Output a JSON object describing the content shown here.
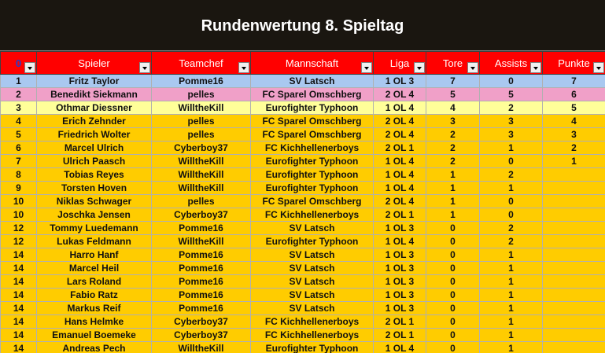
{
  "title": "Rundenwertung 8. Spieltag",
  "columns": [
    {
      "label": "0",
      "key": "rank"
    },
    {
      "label": "Spieler",
      "key": "spieler"
    },
    {
      "label": "Teamchef",
      "key": "teamchef"
    },
    {
      "label": "Mannschaft",
      "key": "mannschaft"
    },
    {
      "label": "Liga",
      "key": "liga"
    },
    {
      "label": "Tore",
      "key": "tore"
    },
    {
      "label": "Assists",
      "key": "assists"
    },
    {
      "label": "Punkte",
      "key": "punkte"
    }
  ],
  "colors": {
    "header_bg": "#ff0000",
    "title_bg": "#1a1610",
    "row_first": "#a9c8f0",
    "row_second": "#f0a0c8",
    "row_third": "#ffff99",
    "row_default": "#ffcc00"
  },
  "rows": [
    {
      "rank": "1",
      "spieler": "Fritz Taylor",
      "teamchef": "Pomme16",
      "mannschaft": "SV Latsch",
      "liga": "1 OL 3",
      "tore": "7",
      "assists": "0",
      "punkte": "7",
      "style": "blue"
    },
    {
      "rank": "2",
      "spieler": "Benedikt Siekmann",
      "teamchef": "pelles",
      "mannschaft": "FC Sparel Omschberg",
      "liga": "2 OL 4",
      "tore": "5",
      "assists": "5",
      "punkte": "6",
      "style": "pink"
    },
    {
      "rank": "3",
      "spieler": "Othmar Diessner",
      "teamchef": "WilltheKill",
      "mannschaft": "Eurofighter Typhoon",
      "liga": "1 OL 4",
      "tore": "4",
      "assists": "2",
      "punkte": "5",
      "style": "yellow"
    },
    {
      "rank": "4",
      "spieler": "Erich Zehnder",
      "teamchef": "pelles",
      "mannschaft": "FC Sparel Omschberg",
      "liga": "2 OL 4",
      "tore": "3",
      "assists": "3",
      "punkte": "4",
      "style": "gold"
    },
    {
      "rank": "5",
      "spieler": "Friedrich Wolter",
      "teamchef": "pelles",
      "mannschaft": "FC Sparel Omschberg",
      "liga": "2 OL 4",
      "tore": "2",
      "assists": "3",
      "punkte": "3",
      "style": "gold"
    },
    {
      "rank": "6",
      "spieler": "Marcel Ulrich",
      "teamchef": "Cyberboy37",
      "mannschaft": "FC Kichhellenerboys",
      "liga": "2 OL 1",
      "tore": "2",
      "assists": "1",
      "punkte": "2",
      "style": "gold"
    },
    {
      "rank": "7",
      "spieler": "Ulrich Paasch",
      "teamchef": "WilltheKill",
      "mannschaft": "Eurofighter Typhoon",
      "liga": "1 OL 4",
      "tore": "2",
      "assists": "0",
      "punkte": "1",
      "style": "gold"
    },
    {
      "rank": "8",
      "spieler": "Tobias Reyes",
      "teamchef": "WilltheKill",
      "mannschaft": "Eurofighter Typhoon",
      "liga": "1 OL 4",
      "tore": "1",
      "assists": "2",
      "punkte": "",
      "style": "gold"
    },
    {
      "rank": "9",
      "spieler": "Torsten Hoven",
      "teamchef": "WilltheKill",
      "mannschaft": "Eurofighter Typhoon",
      "liga": "1 OL 4",
      "tore": "1",
      "assists": "1",
      "punkte": "",
      "style": "gold"
    },
    {
      "rank": "10",
      "spieler": "Niklas Schwager",
      "teamchef": "pelles",
      "mannschaft": "FC Sparel Omschberg",
      "liga": "2 OL 4",
      "tore": "1",
      "assists": "0",
      "punkte": "",
      "style": "gold"
    },
    {
      "rank": "10",
      "spieler": "Joschka Jensen",
      "teamchef": "Cyberboy37",
      "mannschaft": "FC Kichhellenerboys",
      "liga": "2 OL 1",
      "tore": "1",
      "assists": "0",
      "punkte": "",
      "style": "gold"
    },
    {
      "rank": "12",
      "spieler": "Tommy Luedemann",
      "teamchef": "Pomme16",
      "mannschaft": "SV Latsch",
      "liga": "1 OL 3",
      "tore": "0",
      "assists": "2",
      "punkte": "",
      "style": "gold"
    },
    {
      "rank": "12",
      "spieler": "Lukas Feldmann",
      "teamchef": "WilltheKill",
      "mannschaft": "Eurofighter Typhoon",
      "liga": "1 OL 4",
      "tore": "0",
      "assists": "2",
      "punkte": "",
      "style": "gold"
    },
    {
      "rank": "14",
      "spieler": "Harro Hanf",
      "teamchef": "Pomme16",
      "mannschaft": "SV Latsch",
      "liga": "1 OL 3",
      "tore": "0",
      "assists": "1",
      "punkte": "",
      "style": "gold"
    },
    {
      "rank": "14",
      "spieler": "Marcel Heil",
      "teamchef": "Pomme16",
      "mannschaft": "SV Latsch",
      "liga": "1 OL 3",
      "tore": "0",
      "assists": "1",
      "punkte": "",
      "style": "gold"
    },
    {
      "rank": "14",
      "spieler": "Lars Roland",
      "teamchef": "Pomme16",
      "mannschaft": "SV Latsch",
      "liga": "1 OL 3",
      "tore": "0",
      "assists": "1",
      "punkte": "",
      "style": "gold"
    },
    {
      "rank": "14",
      "spieler": "Fabio Ratz",
      "teamchef": "Pomme16",
      "mannschaft": "SV Latsch",
      "liga": "1 OL 3",
      "tore": "0",
      "assists": "1",
      "punkte": "",
      "style": "gold"
    },
    {
      "rank": "14",
      "spieler": "Markus Reif",
      "teamchef": "Pomme16",
      "mannschaft": "SV Latsch",
      "liga": "1 OL 3",
      "tore": "0",
      "assists": "1",
      "punkte": "",
      "style": "gold"
    },
    {
      "rank": "14",
      "spieler": "Hans Helmke",
      "teamchef": "Cyberboy37",
      "mannschaft": "FC Kichhellenerboys",
      "liga": "2 OL 1",
      "tore": "0",
      "assists": "1",
      "punkte": "",
      "style": "gold"
    },
    {
      "rank": "14",
      "spieler": "Emanuel Boemeke",
      "teamchef": "Cyberboy37",
      "mannschaft": "FC Kichhellenerboys",
      "liga": "2 OL 1",
      "tore": "0",
      "assists": "1",
      "punkte": "",
      "style": "gold"
    },
    {
      "rank": "14",
      "spieler": "Andreas Pech",
      "teamchef": "WilltheKill",
      "mannschaft": "Eurofighter Typhoon",
      "liga": "1 OL 4",
      "tore": "0",
      "assists": "1",
      "punkte": "",
      "style": "gold"
    }
  ]
}
